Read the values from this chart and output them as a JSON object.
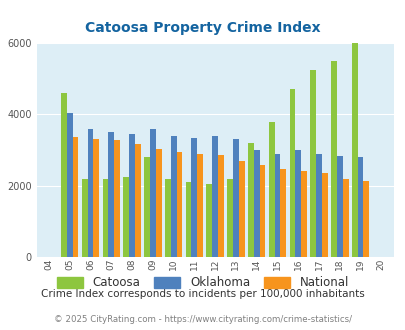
{
  "title": "Catoosa Property Crime Index",
  "years": [
    "04",
    "05",
    "06",
    "07",
    "08",
    "09",
    "10",
    "11",
    "12",
    "13",
    "14",
    "15",
    "16",
    "17",
    "18",
    "19",
    "20"
  ],
  "catoosa": [
    0,
    4600,
    2200,
    2200,
    2250,
    2800,
    2200,
    2100,
    2050,
    2200,
    3200,
    3800,
    4700,
    5250,
    5500,
    6000,
    0
  ],
  "oklahoma": [
    0,
    4050,
    3600,
    3500,
    3450,
    3600,
    3400,
    3350,
    3400,
    3300,
    3000,
    2900,
    3000,
    2900,
    2850,
    2800,
    0
  ],
  "national": [
    0,
    3380,
    3320,
    3270,
    3160,
    3030,
    2950,
    2900,
    2870,
    2700,
    2590,
    2470,
    2430,
    2350,
    2200,
    2150,
    0
  ],
  "catoosa_color": "#8dc63f",
  "oklahoma_color": "#4f81bd",
  "national_color": "#f7941d",
  "bg_color": "#ddeef6",
  "ylim": [
    0,
    6000
  ],
  "yticks": [
    0,
    2000,
    4000,
    6000
  ],
  "subtitle": "Crime Index corresponds to incidents per 100,000 inhabitants",
  "footer": "© 2025 CityRating.com - https://www.cityrating.com/crime-statistics/",
  "title_color": "#1464a0",
  "subtitle_color": "#333333",
  "footer_color": "#808080",
  "legend_text_color": "#333333"
}
